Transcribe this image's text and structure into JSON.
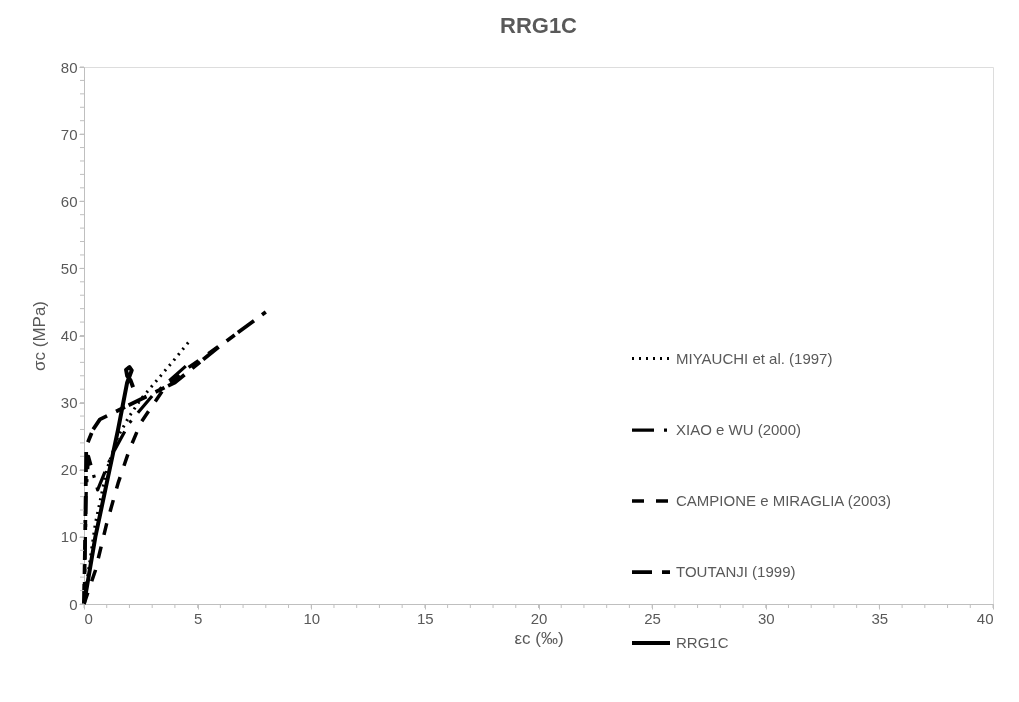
{
  "chart_data": {
    "type": "line",
    "title": "RRG1C",
    "xlabel": "εc (‰)",
    "ylabel": "σc  (MPa)",
    "xlim": [
      0,
      40
    ],
    "ylim": [
      0,
      80
    ],
    "xticks": [
      0,
      5,
      10,
      15,
      20,
      25,
      30,
      35,
      40
    ],
    "yticks": [
      0,
      10,
      20,
      30,
      40,
      50,
      60,
      70,
      80
    ],
    "grid": false,
    "legend": "right",
    "series": [
      {
        "name": "MIYAUCHI et al. (1997)",
        "color": "#000000",
        "line_style": "dotted",
        "x": [
          0,
          0.2,
          0.5,
          1,
          1.5,
          2,
          2.5,
          3,
          3.5,
          4,
          4.6
        ],
        "values": [
          0,
          5,
          12,
          20,
          25,
          28,
          30.5,
          32.5,
          34.5,
          36.5,
          39
        ]
      },
      {
        "name": "XIAO e WU (2000)",
        "color": "#000000",
        "line_style": "dashed",
        "x": [
          0,
          0.05,
          0.1,
          0.15,
          0.2,
          0.6,
          1.2,
          2,
          3,
          4.5
        ],
        "values": [
          0,
          8,
          17,
          19.5,
          22,
          17,
          22,
          27,
          31,
          35.5
        ]
      },
      {
        "name": "CAMPIONE e MIRAGLIA (2003)",
        "color": "#000000",
        "line_style": "dashed",
        "x": [
          0,
          0.5,
          1,
          1.5,
          2,
          2.5,
          3.5,
          4.5,
          5.1,
          6.3
        ],
        "values": [
          0,
          5,
          12,
          18,
          23,
          27,
          32,
          35,
          36.4,
          39.3
        ]
      },
      {
        "name": "TOUTANJI (1999)",
        "color": "#000000",
        "line_style": "dashed",
        "x": [
          0,
          0.05,
          0.1,
          0.4,
          0.7,
          2.5,
          4,
          6,
          8
        ],
        "values": [
          0,
          10,
          23.5,
          26,
          27.5,
          30.5,
          33,
          38.5,
          43.5
        ]
      },
      {
        "name": "RRG1C",
        "color": "#000000",
        "line_style": "solid",
        "x": [
          0,
          0.5,
          1,
          1.5,
          1.9,
          2.1,
          2.0,
          1.85,
          1.9,
          2.05,
          2.16
        ],
        "values": [
          0,
          10,
          18,
          26,
          33,
          34.8,
          35.3,
          34.9,
          34,
          33.3,
          32.3
        ]
      }
    ]
  }
}
